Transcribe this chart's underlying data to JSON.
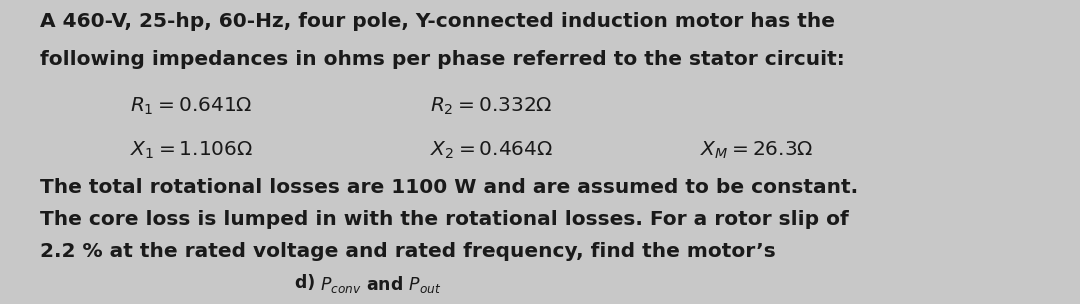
{
  "bg_color": "#c8c8c8",
  "text_color": "#1a1a1a",
  "figsize": [
    10.8,
    3.04
  ],
  "dpi": 100,
  "line1": "A 460-V, 25-hp, 60-Hz, four pole, Y-connected induction motor has the",
  "line2": "following impedances in ohms per phase referred to the stator circuit:",
  "param_r1_c1": "$R_1 = 0.641\\Omega$",
  "param_r1_c2": "$R_2 = 0.332\\Omega$",
  "param_r2_c1": "$X_1 = 1.106\\Omega$",
  "param_r2_c2": "$X_2 = 0.464\\Omega$",
  "param_r2_c3": "$X_M = 26.3\\Omega$",
  "body1": "The total rotational losses are 1100 W and are assumed to be constant.",
  "body2": "The core loss is lumped in with the rotational losses. For a rotor slip of",
  "body3": "2.2 % at the rated voltage and rated frequency, find the motor’s",
  "q_prefix": "d) ",
  "q_math": "$P_{conv}$ and $P_{out}$",
  "main_fs": 14.5,
  "param_fs": 14.5,
  "q_fs": 12.5
}
